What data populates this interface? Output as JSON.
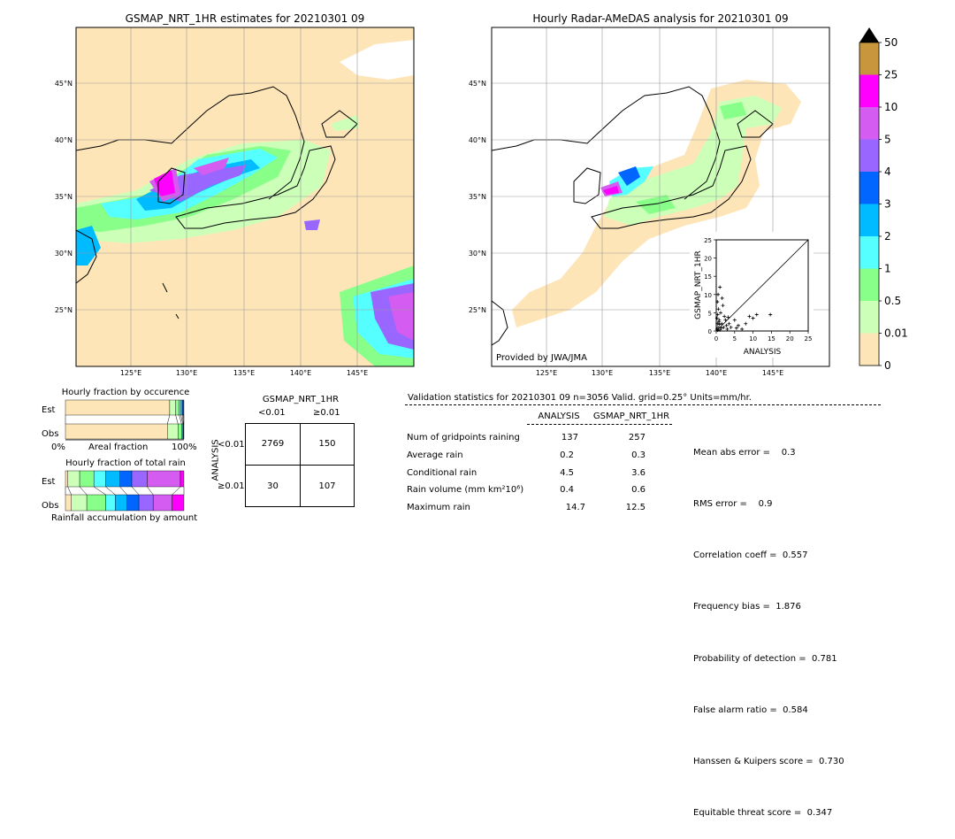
{
  "left_map": {
    "title": "GSMAP_NRT_1HR estimates for 20210301 09",
    "lat_labels": [
      "45°N",
      "40°N",
      "35°N",
      "30°N",
      "25°N"
    ],
    "lon_labels": [
      "125°E",
      "130°E",
      "135°E",
      "140°E",
      "145°E"
    ]
  },
  "right_map": {
    "title": "Hourly Radar-AMeDAS analysis for 20210301 09",
    "lat_labels": [
      "45°N",
      "40°N",
      "35°N",
      "30°N",
      "25°N"
    ],
    "lon_labels": [
      "125°E",
      "130°E",
      "135°E",
      "140°E",
      "145°E"
    ],
    "credit": "Provided by JWA/JMA"
  },
  "colorbar": {
    "labels": [
      "50",
      "25",
      "10",
      "5",
      "4",
      "3",
      "2",
      "1",
      "0.5",
      "0.01",
      "0"
    ],
    "colors": [
      "#c8963c",
      "#ff00ff",
      "#d45cf0",
      "#9966ff",
      "#0066ff",
      "#00bbff",
      "#55ffff",
      "#88ff88",
      "#ccffb8",
      "#fde5b8"
    ]
  },
  "occurrence": {
    "title": "Hourly fraction by occurence",
    "row_est": "Est",
    "row_obs": "Obs",
    "axis_left": "0%",
    "axis_mid": "Areal fraction",
    "axis_right": "100%"
  },
  "total_rain": {
    "title": "Hourly fraction of total rain",
    "row_est": "Est",
    "row_obs": "Obs",
    "footer": "Rainfall accumulation by amount"
  },
  "contingency": {
    "title": "GSMAP_NRT_1HR",
    "col_lt": "<0.01",
    "col_ge": "≥0.01",
    "row_axis": "ANALYSIS",
    "row_lt": "<0.01",
    "row_ge": "≥0.01",
    "cells": [
      "2769",
      "150",
      "30",
      "107"
    ]
  },
  "validation": {
    "header": "Validation statistics for 20210301 09  n=3056 Valid. grid=0.25° Units=mm/hr.",
    "col_analysis": "ANALYSIS",
    "col_gsmap": "GSMAP_NRT_1HR",
    "rows": [
      {
        "label": "Num of gridpoints raining",
        "analysis": "137",
        "gsmap": "257"
      },
      {
        "label": "Average rain",
        "analysis": "0.2",
        "gsmap": "0.3"
      },
      {
        "label": "Conditional rain",
        "analysis": "4.5",
        "gsmap": "3.6"
      },
      {
        "label": "Rain volume (mm km²10⁶)",
        "analysis": "0.4",
        "gsmap": "0.6"
      },
      {
        "label": "Maximum rain",
        "analysis": "14.7",
        "gsmap": "12.5"
      }
    ],
    "scores": [
      "Mean abs error =    0.3",
      "RMS error =    0.9",
      "Correlation coeff =  0.557",
      "Frequency bias =  1.876",
      "Probability of detection =  0.781",
      "False alarm ratio =  0.584",
      "Hanssen & Kuipers score =  0.730",
      "Equitable threat score =  0.347"
    ]
  },
  "chart_data": [
    {
      "type": "scatter",
      "xlabel": "ANALYSIS",
      "ylabel": "GSMAP_NRT_1HR",
      "xlim": [
        0,
        25
      ],
      "ylim": [
        0,
        25
      ],
      "x_ticks": [
        "0",
        "5",
        "10",
        "15",
        "20",
        "25"
      ],
      "y_ticks": [
        "0",
        "5",
        "10",
        "15",
        "20",
        "25"
      ],
      "points": [
        [
          0.2,
          0.5
        ],
        [
          0.5,
          1.0
        ],
        [
          0.3,
          2.0
        ],
        [
          1.0,
          0.3
        ],
        [
          0.8,
          3.0
        ],
        [
          1.5,
          2.0
        ],
        [
          0.4,
          4.5
        ],
        [
          2.0,
          1.0
        ],
        [
          0.6,
          6.0
        ],
        [
          1.2,
          5.0
        ],
        [
          0.3,
          8.0
        ],
        [
          2.5,
          3.0
        ],
        [
          3.0,
          0.5
        ],
        [
          0.5,
          10.0
        ],
        [
          1.0,
          12.0
        ],
        [
          1.8,
          7.0
        ],
        [
          0.7,
          2.5
        ],
        [
          2.2,
          4.0
        ],
        [
          3.5,
          2.0
        ],
        [
          4.0,
          1.0
        ],
        [
          5.0,
          3.0
        ],
        [
          5.5,
          0.8
        ],
        [
          6.0,
          1.5
        ],
        [
          7.0,
          0.5
        ],
        [
          8.0,
          2.0
        ],
        [
          9.0,
          4.0
        ],
        [
          10.0,
          3.5
        ],
        [
          11.0,
          4.5
        ],
        [
          14.7,
          4.5
        ],
        [
          0.2,
          3.5
        ],
        [
          1.4,
          0.8
        ],
        [
          0.9,
          1.8
        ],
        [
          2.8,
          1.5
        ],
        [
          1.6,
          9.0
        ],
        [
          0.4,
          0.2
        ],
        [
          3.2,
          3.8
        ]
      ]
    },
    {
      "type": "bar",
      "title": "Hourly fraction by occurence",
      "categories": [
        "Est",
        "Obs"
      ],
      "series": [
        {
          "values": [
            0.88,
            0.86
          ]
        },
        {
          "values": [
            0.05,
            0.09
          ]
        },
        {
          "values": [
            0.03,
            0.03
          ]
        },
        {
          "values": [
            0.015,
            0.01
          ]
        },
        {
          "values": [
            0.012,
            0.005
          ]
        },
        {
          "values": [
            0.008,
            0.003
          ]
        },
        {
          "values": [
            0.005,
            0.002
          ]
        }
      ]
    },
    {
      "type": "bar",
      "title": "Hourly fraction of total rain",
      "categories": [
        "Est",
        "Obs"
      ],
      "series": [
        {
          "values": [
            0.02,
            0.05
          ]
        },
        {
          "values": [
            0.1,
            0.13
          ]
        },
        {
          "values": [
            0.12,
            0.16
          ]
        },
        {
          "values": [
            0.1,
            0.08
          ]
        },
        {
          "values": [
            0.12,
            0.1
          ]
        },
        {
          "values": [
            0.1,
            0.1
          ]
        },
        {
          "values": [
            0.13,
            0.12
          ]
        },
        {
          "values": [
            0.28,
            0.16
          ]
        },
        {
          "values": [
            0.03,
            0.1
          ]
        }
      ]
    }
  ]
}
